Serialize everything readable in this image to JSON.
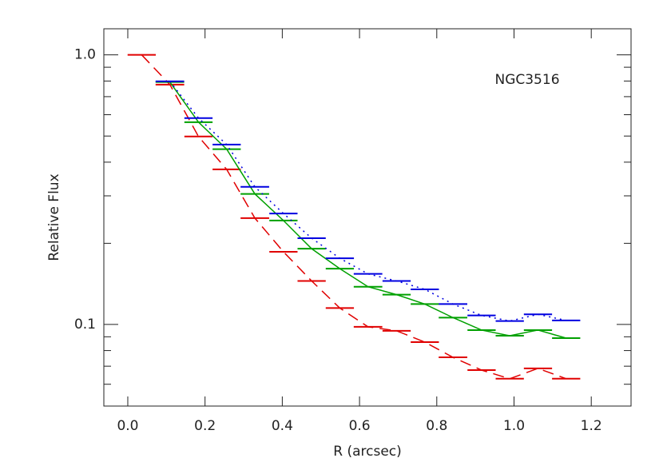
{
  "chart_data": {
    "type": "step-line",
    "annotation": "NGC3516",
    "xlabel": "R (arcsec)",
    "ylabel": "Relative Flux",
    "xlim": [
      -0.062,
      1.303
    ],
    "ylim": [
      0.0498,
      1.25
    ],
    "ylog": true,
    "xticks": [
      {
        "value": 0,
        "label": "0.0"
      },
      {
        "value": 0.2,
        "label": "0.2"
      },
      {
        "value": 0.4,
        "label": "0.4"
      },
      {
        "value": 0.6,
        "label": "0.6"
      },
      {
        "value": 0.8,
        "label": "0.8"
      },
      {
        "value": 1,
        "label": "1.0"
      },
      {
        "value": 1.2,
        "label": "1.2"
      }
    ],
    "yticks": [
      {
        "value": 0.1,
        "label": "0.1"
      },
      {
        "value": 1,
        "label": "1.0"
      }
    ],
    "yminor": [
      0.06,
      0.07,
      0.08,
      0.09,
      0.2,
      0.3,
      0.4,
      0.5,
      0.6,
      0.7,
      0.8,
      0.9
    ],
    "x": [
      0.036,
      0.109,
      0.183,
      0.256,
      0.329,
      0.403,
      0.476,
      0.549,
      0.622,
      0.696,
      0.769,
      0.842,
      0.916,
      0.989,
      1.062,
      1.135
    ],
    "series": [
      {
        "color": "#e00000",
        "dash": "14,8",
        "values": [
          1.0,
          0.776,
          0.498,
          0.376,
          0.248,
          0.186,
          0.145,
          0.115,
          0.098,
          0.0947,
          0.086,
          0.0755,
          0.0677,
          0.0629,
          0.0687,
          0.0629
        ]
      },
      {
        "color": "#00a000",
        "dash": "none",
        "values": [
          null,
          0.793,
          0.563,
          0.447,
          0.305,
          0.243,
          0.191,
          0.161,
          0.138,
          0.129,
          0.119,
          0.106,
          0.0953,
          0.0908,
          0.0953,
          0.089
        ]
      },
      {
        "color": "#0000e0",
        "dash": "2,5",
        "values": [
          null,
          0.798,
          0.583,
          0.465,
          0.324,
          0.258,
          0.209,
          0.176,
          0.154,
          0.145,
          0.135,
          0.119,
          0.108,
          0.103,
          0.109,
          0.1035
        ]
      }
    ]
  }
}
